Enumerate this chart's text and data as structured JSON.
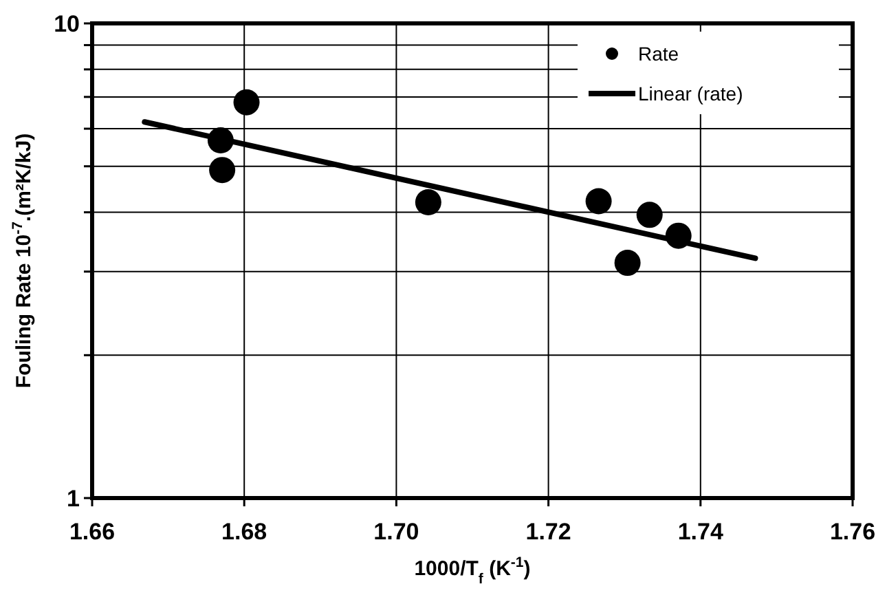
{
  "chart_data": {
    "type": "scatter",
    "xlabel": "1000/T$_{f}$  (K$^{-1}$)",
    "ylabel": "Fouling Rate 10$^{-7}$.(m²K/kJ)",
    "log": "y",
    "grid": true,
    "legend": "top right",
    "xlim": [
      1.66,
      1.76
    ],
    "xticks": [
      {
        "value": 1.66,
        "label": "1.66"
      },
      {
        "value": 1.68,
        "label": "1.68"
      },
      {
        "value": 1.7,
        "label": "1.70"
      },
      {
        "value": 1.72,
        "label": "1.72"
      },
      {
        "value": 1.74,
        "label": "1.74"
      },
      {
        "value": 1.76,
        "label": "1.76"
      }
    ],
    "ylim": [
      1,
      10
    ],
    "yticks": [
      1,
      {
        "value": 2,
        "label": null
      },
      {
        "value": 3,
        "label": null
      },
      {
        "value": 4,
        "label": null
      },
      {
        "value": 5,
        "label": null
      },
      {
        "value": 6,
        "label": null
      },
      {
        "value": 7,
        "label": null
      },
      {
        "value": 8,
        "label": null
      },
      {
        "value": 9,
        "label": null
      },
      10
    ],
    "series": [
      {
        "name": "Rate",
        "marker": "circle",
        "color": "#000000",
        "x": [
          1.6803,
          1.6769,
          1.6771,
          1.7042,
          1.7266,
          1.7333,
          1.7371,
          1.7304
        ],
        "values": [
          6.82,
          5.67,
          4.91,
          4.2,
          4.22,
          3.95,
          3.57,
          3.13
        ]
      },
      {
        "name": "Linear (rate)",
        "type": "line",
        "marker": "none",
        "line_style": "solid",
        "color": "#000000",
        "x": [
          1.6669,
          1.7472
        ],
        "values": [
          6.2,
          3.2
        ]
      }
    ]
  }
}
